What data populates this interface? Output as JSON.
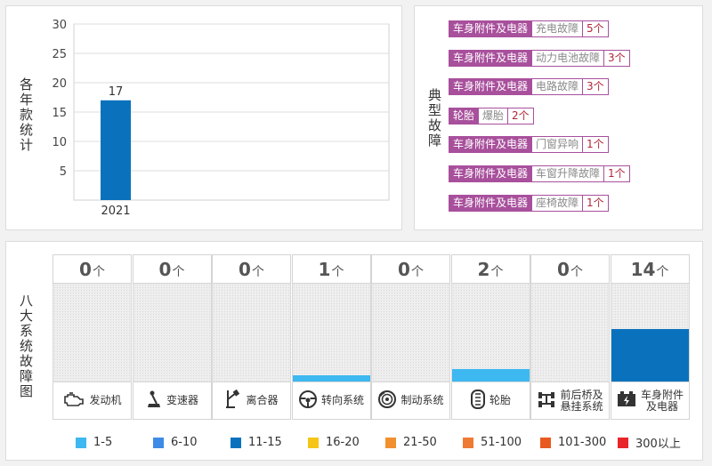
{
  "year_panel": {
    "side_label": "各年款统计"
  },
  "fault_panel": {
    "side_label": "典型故障",
    "faults": [
      {
        "category": "车身附件及电器",
        "name": "充电故障",
        "count": "5个"
      },
      {
        "category": "车身附件及电器",
        "name": "动力电池故障",
        "count": "3个"
      },
      {
        "category": "车身附件及电器",
        "name": "电路故障",
        "count": "3个"
      },
      {
        "category": "轮胎",
        "name": "爆胎",
        "count": "2个"
      },
      {
        "category": "车身附件及电器",
        "name": "门窗异响",
        "count": "1个"
      },
      {
        "category": "车身附件及电器",
        "name": "车窗升降故障",
        "count": "1个"
      },
      {
        "category": "车身附件及电器",
        "name": "座椅故障",
        "count": "1个"
      }
    ]
  },
  "systems_panel": {
    "side_label": "八大系统故障图",
    "unit": "个",
    "systems": [
      {
        "name": "发动机",
        "count": 0,
        "icon": "engine-icon"
      },
      {
        "name": "变速器",
        "count": 0,
        "icon": "gear-shift-icon"
      },
      {
        "name": "离合器",
        "count": 0,
        "icon": "clutch-pedal-icon"
      },
      {
        "name": "转向系统",
        "count": 1,
        "icon": "steering-wheel-icon"
      },
      {
        "name": "制动系统",
        "count": 0,
        "icon": "brake-disc-icon"
      },
      {
        "name": "轮胎",
        "count": 2,
        "icon": "tire-icon"
      },
      {
        "name": "前后桥及悬挂系统",
        "label_lines": [
          "前后桥及",
          "悬挂系统"
        ],
        "count": 0,
        "icon": "axle-icon"
      },
      {
        "name": "车身附件及电器",
        "label_lines": [
          "车身附件",
          "及电器"
        ],
        "count": 14,
        "icon": "battery-icon"
      }
    ],
    "legend": [
      {
        "label": "1-5",
        "color": "#3db8f0"
      },
      {
        "label": "6-10",
        "color": "#3d8be6"
      },
      {
        "label": "11-15",
        "color": "#0a72bd"
      },
      {
        "label": "16-20",
        "color": "#f5c518"
      },
      {
        "label": "21-50",
        "color": "#f2902e"
      },
      {
        "label": "51-100",
        "color": "#ef7a34"
      },
      {
        "label": "101-300",
        "color": "#e85a1f"
      },
      {
        "label": "300以上",
        "color": "#e8252a"
      }
    ]
  },
  "chart_data": {
    "type": "bar",
    "categories": [
      "2021"
    ],
    "values": [
      17
    ],
    "xlabel": "",
    "ylabel": "",
    "yticks": [
      5,
      10,
      15,
      20,
      25,
      30
    ],
    "ylim": [
      0,
      30
    ],
    "grid": true,
    "bar_color": "#0a72bd"
  }
}
